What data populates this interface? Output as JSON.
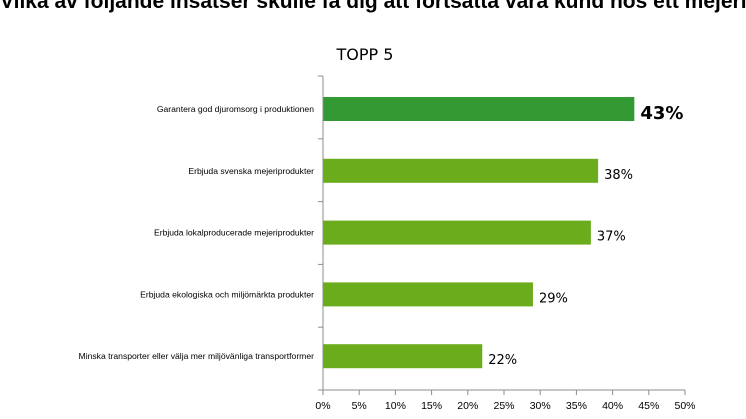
{
  "chart_data": {
    "type": "bar",
    "orientation": "horizontal",
    "title": "Vilka av följande insatser skulle få dig att fortsätta vara kund hos ett mejeriföretag?",
    "subtitle": "TOPP 5",
    "categories": [
      "Garantera god djuromsorg i produktionen",
      "Erbjuda svenska mejeriprodukter",
      "Erbjuda lokalproducerade mejeriprodukter",
      "Erbjuda ekologiska och miljömärkta produkter",
      "Minska transporter eller välja mer miljövänliga transportformer"
    ],
    "values": [
      43,
      38,
      37,
      29,
      22
    ],
    "value_labels": [
      "43%",
      "38%",
      "37%",
      "29%",
      "22%"
    ],
    "highlight_index": 0,
    "colors": {
      "highlight": "#339933",
      "default": "#6aac1c"
    },
    "xlim": [
      0,
      50
    ],
    "xticks": [
      "0%",
      "5%",
      "10%",
      "15%",
      "20%",
      "25%",
      "30%",
      "35%",
      "40%",
      "45%",
      "50%"
    ],
    "grid": false,
    "legend": "none"
  }
}
